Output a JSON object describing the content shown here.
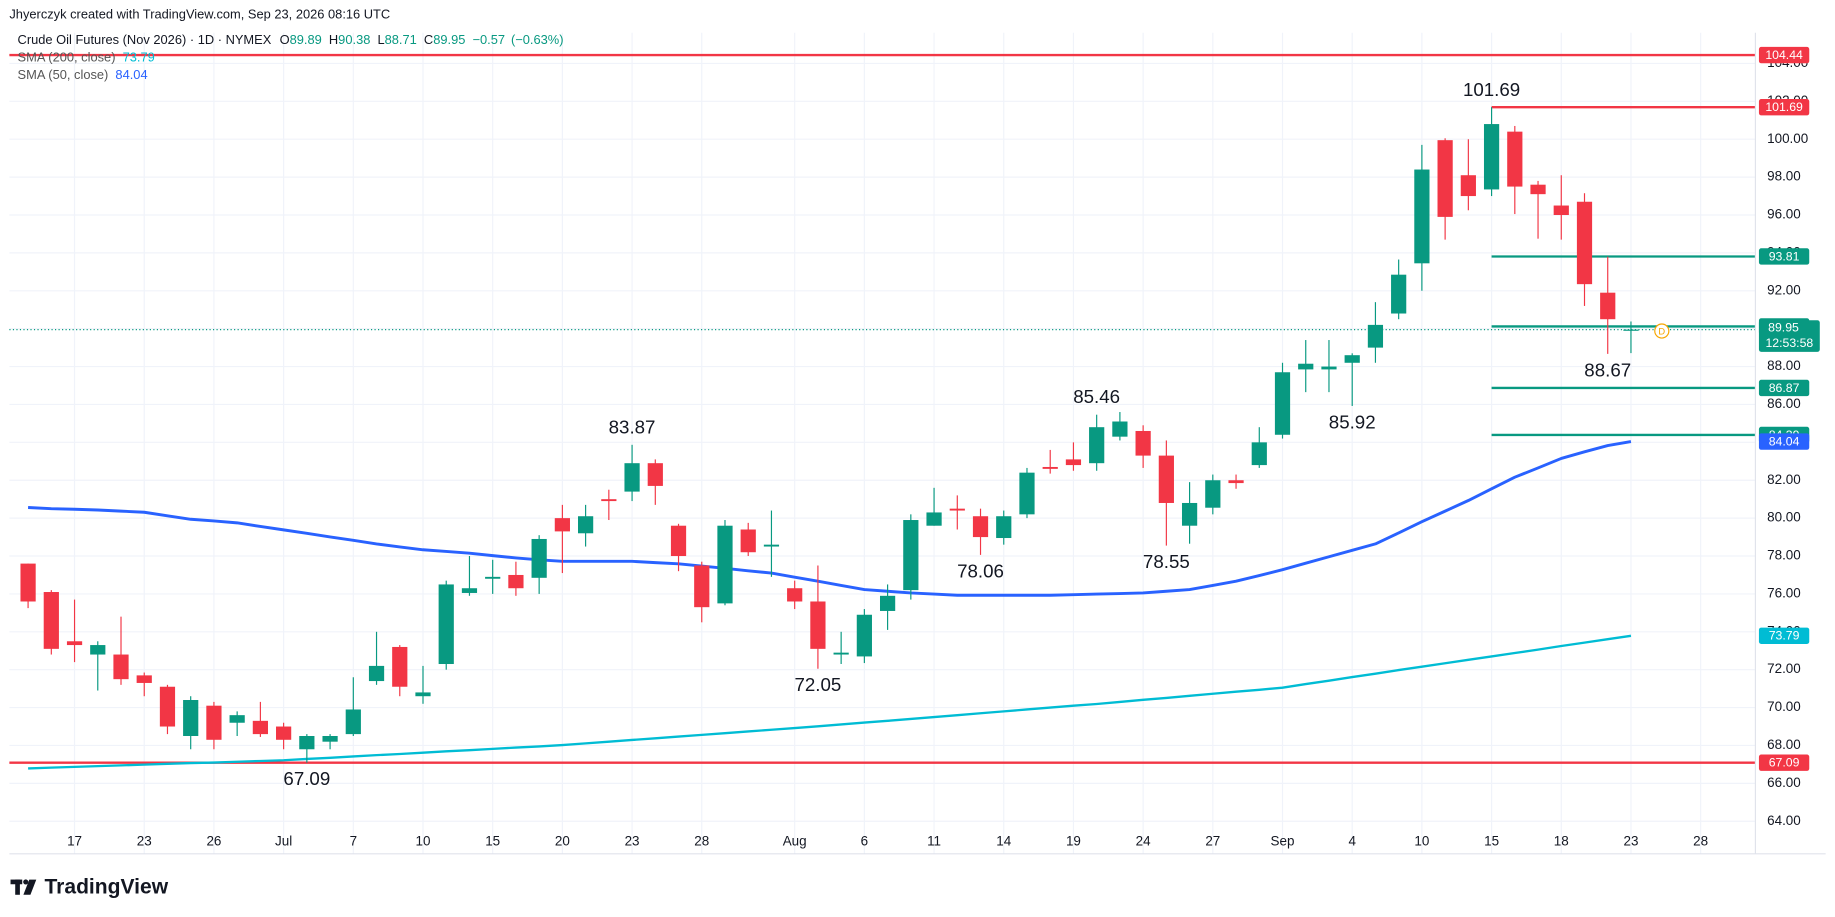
{
  "chart_data": {
    "type": "candlestick",
    "watermark": "Jhyerczyk created with TradingView.com, Sep 23, 2026 08:16 UTC",
    "title": "Crude Oil Futures (Nov 2026) · 1D · NYMEX",
    "ohlc_letters": [
      "O",
      "H",
      "L",
      "C"
    ],
    "change": {
      "value": -0.57,
      "label": "−0.57"
    },
    "change_pct": {
      "value": -0.63,
      "label": "(−0.63%)"
    },
    "countdown": "12:53:58",
    "brand": "TradingView",
    "up_color": "#089981",
    "down_color": "#f23645",
    "categories": [
      null,
      null,
      "17",
      null,
      null,
      "23",
      null,
      null,
      "26",
      null,
      null,
      "Jul",
      null,
      null,
      "7",
      null,
      null,
      "10",
      null,
      null,
      "15",
      null,
      null,
      "20",
      null,
      null,
      "23",
      null,
      null,
      "28",
      null,
      null,
      null,
      "Aug",
      null,
      null,
      "6",
      null,
      null,
      "11",
      null,
      null,
      "14",
      null,
      null,
      "19",
      null,
      null,
      "24",
      null,
      null,
      "27",
      null,
      null,
      "Sep",
      null,
      null,
      "4",
      null,
      null,
      "10",
      null,
      null,
      "15",
      null,
      null,
      "18",
      null,
      null,
      "23",
      null,
      null,
      "28"
    ],
    "open": [
      77.6,
      76.1,
      73.5,
      72.8,
      72.8,
      71.7,
      71.1,
      68.5,
      70.1,
      69.2,
      69.3,
      69.0,
      67.8,
      68.2,
      68.6,
      71.4,
      73.2,
      70.6,
      72.3,
      76.05,
      76.8,
      77.0,
      76.85,
      80.0,
      79.2,
      81.0,
      81.4,
      82.9,
      79.6,
      77.5,
      75.5,
      79.4,
      78.5,
      76.3,
      75.6,
      72.8,
      72.7,
      75.1,
      76.2,
      79.6,
      80.5,
      80.1,
      78.95,
      80.2,
      82.7,
      83.1,
      82.9,
      84.3,
      84.6,
      83.3,
      79.6,
      80.55,
      82.0,
      82.8,
      84.4,
      87.85,
      87.85,
      88.2,
      89.0,
      90.8,
      93.45,
      99.95,
      98.1,
      97.35,
      100.4,
      97.6,
      96.5,
      96.7,
      91.9,
      89.89,
      null,
      null,
      null
    ],
    "high": [
      77.6,
      76.2,
      75.7,
      73.5,
      74.8,
      71.85,
      71.2,
      70.6,
      70.3,
      69.8,
      70.3,
      69.2,
      68.6,
      68.6,
      71.6,
      74.0,
      73.3,
      72.2,
      76.7,
      78.0,
      77.8,
      77.7,
      79.1,
      80.7,
      80.7,
      81.5,
      83.87,
      83.1,
      79.7,
      77.7,
      79.9,
      79.75,
      80.4,
      76.7,
      77.5,
      74.0,
      75.2,
      76.5,
      80.2,
      81.6,
      81.2,
      80.5,
      80.4,
      82.65,
      83.6,
      84.0,
      85.46,
      85.6,
      84.9,
      84.1,
      81.9,
      82.3,
      82.3,
      84.8,
      88.2,
      89.4,
      89.4,
      88.7,
      91.4,
      93.65,
      99.7,
      100.05,
      100.0,
      101.69,
      100.7,
      97.8,
      98.1,
      97.15,
      93.8,
      90.38,
      null,
      null,
      null
    ],
    "low": [
      75.25,
      72.8,
      72.4,
      70.9,
      71.2,
      70.6,
      68.6,
      67.8,
      67.8,
      68.5,
      68.45,
      67.8,
      67.09,
      67.8,
      68.5,
      71.2,
      70.6,
      70.2,
      72.0,
      75.9,
      76.0,
      75.9,
      76.0,
      77.1,
      78.5,
      79.9,
      80.9,
      80.7,
      77.2,
      74.5,
      75.4,
      78.0,
      76.9,
      75.2,
      72.05,
      72.3,
      72.35,
      74.1,
      75.7,
      79.6,
      79.4,
      78.06,
      78.6,
      80.0,
      82.35,
      82.5,
      82.5,
      84.1,
      82.65,
      78.55,
      78.65,
      80.2,
      81.55,
      82.65,
      84.2,
      86.65,
      86.65,
      85.92,
      88.2,
      90.5,
      92.0,
      94.7,
      96.25,
      97.0,
      96.05,
      94.75,
      94.7,
      91.2,
      88.67,
      88.71,
      null,
      null,
      null
    ],
    "close": [
      75.6,
      73.1,
      73.3,
      73.3,
      71.5,
      71.3,
      69.0,
      70.4,
      68.3,
      69.6,
      68.6,
      68.3,
      68.5,
      68.5,
      69.9,
      72.2,
      71.1,
      70.8,
      76.5,
      76.3,
      76.9,
      76.3,
      78.9,
      79.3,
      80.1,
      80.9,
      82.9,
      81.7,
      78.0,
      75.3,
      79.6,
      78.2,
      78.6,
      75.6,
      73.1,
      72.9,
      74.9,
      75.9,
      79.9,
      80.3,
      80.4,
      79.0,
      80.1,
      82.4,
      82.6,
      82.8,
      84.8,
      85.1,
      83.3,
      80.8,
      80.8,
      82.0,
      81.85,
      84.0,
      87.7,
      88.15,
      88.0,
      88.6,
      90.2,
      92.85,
      98.4,
      95.9,
      97.0,
      100.8,
      97.5,
      97.1,
      96.0,
      92.35,
      90.5,
      89.95,
      null,
      null,
      null
    ],
    "series": [
      {
        "name": "SMA (200, close)",
        "color": "#00bcd4",
        "values": [
          66.79,
          66.83,
          66.87,
          66.91,
          66.95,
          66.99,
          67.03,
          67.07,
          67.1,
          67.14,
          67.18,
          67.22,
          67.29,
          67.35,
          67.42,
          67.49,
          67.55,
          67.62,
          67.69,
          67.75,
          67.82,
          67.89,
          67.95,
          68.02,
          68.11,
          68.2,
          68.29,
          68.38,
          68.47,
          68.56,
          68.65,
          68.74,
          68.83,
          68.92,
          69.01,
          69.11,
          69.21,
          69.3,
          69.4,
          69.5,
          69.6,
          69.7,
          69.8,
          69.9,
          70.0,
          70.1,
          70.19,
          70.3,
          70.41,
          70.51,
          70.62,
          70.73,
          70.84,
          70.94,
          71.05,
          71.24,
          71.42,
          71.61,
          71.79,
          71.98,
          72.16,
          72.34,
          72.52,
          72.7,
          72.88,
          73.06,
          73.25,
          73.43,
          73.61,
          73.79,
          null,
          null,
          null
        ]
      },
      {
        "name": "SMA (50, close)",
        "color": "#2962ff",
        "values": [
          80.56,
          80.5,
          80.47,
          80.43,
          80.37,
          80.31,
          80.12,
          79.94,
          79.85,
          79.75,
          79.56,
          79.38,
          79.2,
          79.01,
          78.83,
          78.64,
          78.48,
          78.33,
          78.24,
          78.15,
          78.02,
          77.9,
          77.8,
          77.72,
          77.72,
          77.72,
          77.72,
          77.65,
          77.59,
          77.47,
          77.35,
          77.22,
          77.1,
          76.88,
          76.67,
          76.45,
          76.23,
          76.14,
          76.05,
          75.99,
          75.93,
          75.93,
          75.93,
          75.93,
          75.93,
          75.96,
          75.99,
          76.02,
          76.05,
          76.14,
          76.23,
          76.45,
          76.67,
          76.97,
          77.28,
          77.62,
          77.96,
          78.3,
          78.64,
          79.22,
          79.81,
          80.37,
          80.93,
          81.55,
          82.16,
          82.65,
          83.15,
          83.5,
          83.83,
          84.04,
          null,
          null,
          null
        ]
      }
    ],
    "levels": [
      {
        "value": 104.44,
        "color": "#f23645"
      },
      {
        "value": 67.09,
        "color": "#f23645"
      }
    ],
    "rays": [
      {
        "value": 101.69,
        "color": "#f23645",
        "from": 63
      },
      {
        "value": 93.81,
        "color": "#089981",
        "from": 63
      },
      {
        "value": 90.12,
        "color": "#089981",
        "from": 63
      },
      {
        "value": 86.87,
        "color": "#089981",
        "from": 63
      },
      {
        "value": 84.39,
        "color": "#089981",
        "from": 63
      }
    ],
    "annotations_high": [
      101.69,
      83.87,
      85.46
    ],
    "annotations_low": [
      88.67,
      85.92,
      78.06,
      78.55,
      72.05,
      67.09
    ],
    "ylim": [
      62.28,
      105.62
    ],
    "yticks": [
      {
        "value": 64,
        "label": "64.00"
      },
      {
        "value": 66,
        "label": "66.00"
      },
      {
        "value": 68,
        "label": "68.00"
      },
      {
        "value": 70,
        "label": "70.00"
      },
      {
        "value": 72,
        "label": "72.00"
      },
      {
        "value": 74,
        "label": "74.00"
      },
      {
        "value": 76,
        "label": "76.00"
      },
      {
        "value": 78,
        "label": "78.00"
      },
      {
        "value": 80,
        "label": "80.00"
      },
      {
        "value": 82,
        "label": "82.00"
      },
      {
        "value": 84,
        "label": "84.00"
      },
      {
        "value": 86,
        "label": "86.00"
      },
      {
        "value": 88,
        "label": "88.00"
      },
      {
        "value": 90,
        "label": "90.00"
      },
      {
        "value": 92,
        "label": "92.00"
      },
      {
        "value": 94,
        "label": "94.00"
      },
      {
        "value": 96,
        "label": "96.00"
      },
      {
        "value": 98,
        "label": "98.00"
      },
      {
        "value": 100,
        "label": "100.00"
      },
      {
        "value": 102,
        "label": "102.00"
      },
      {
        "value": 104,
        "label": "104.00"
      }
    ],
    "grid": true
  }
}
